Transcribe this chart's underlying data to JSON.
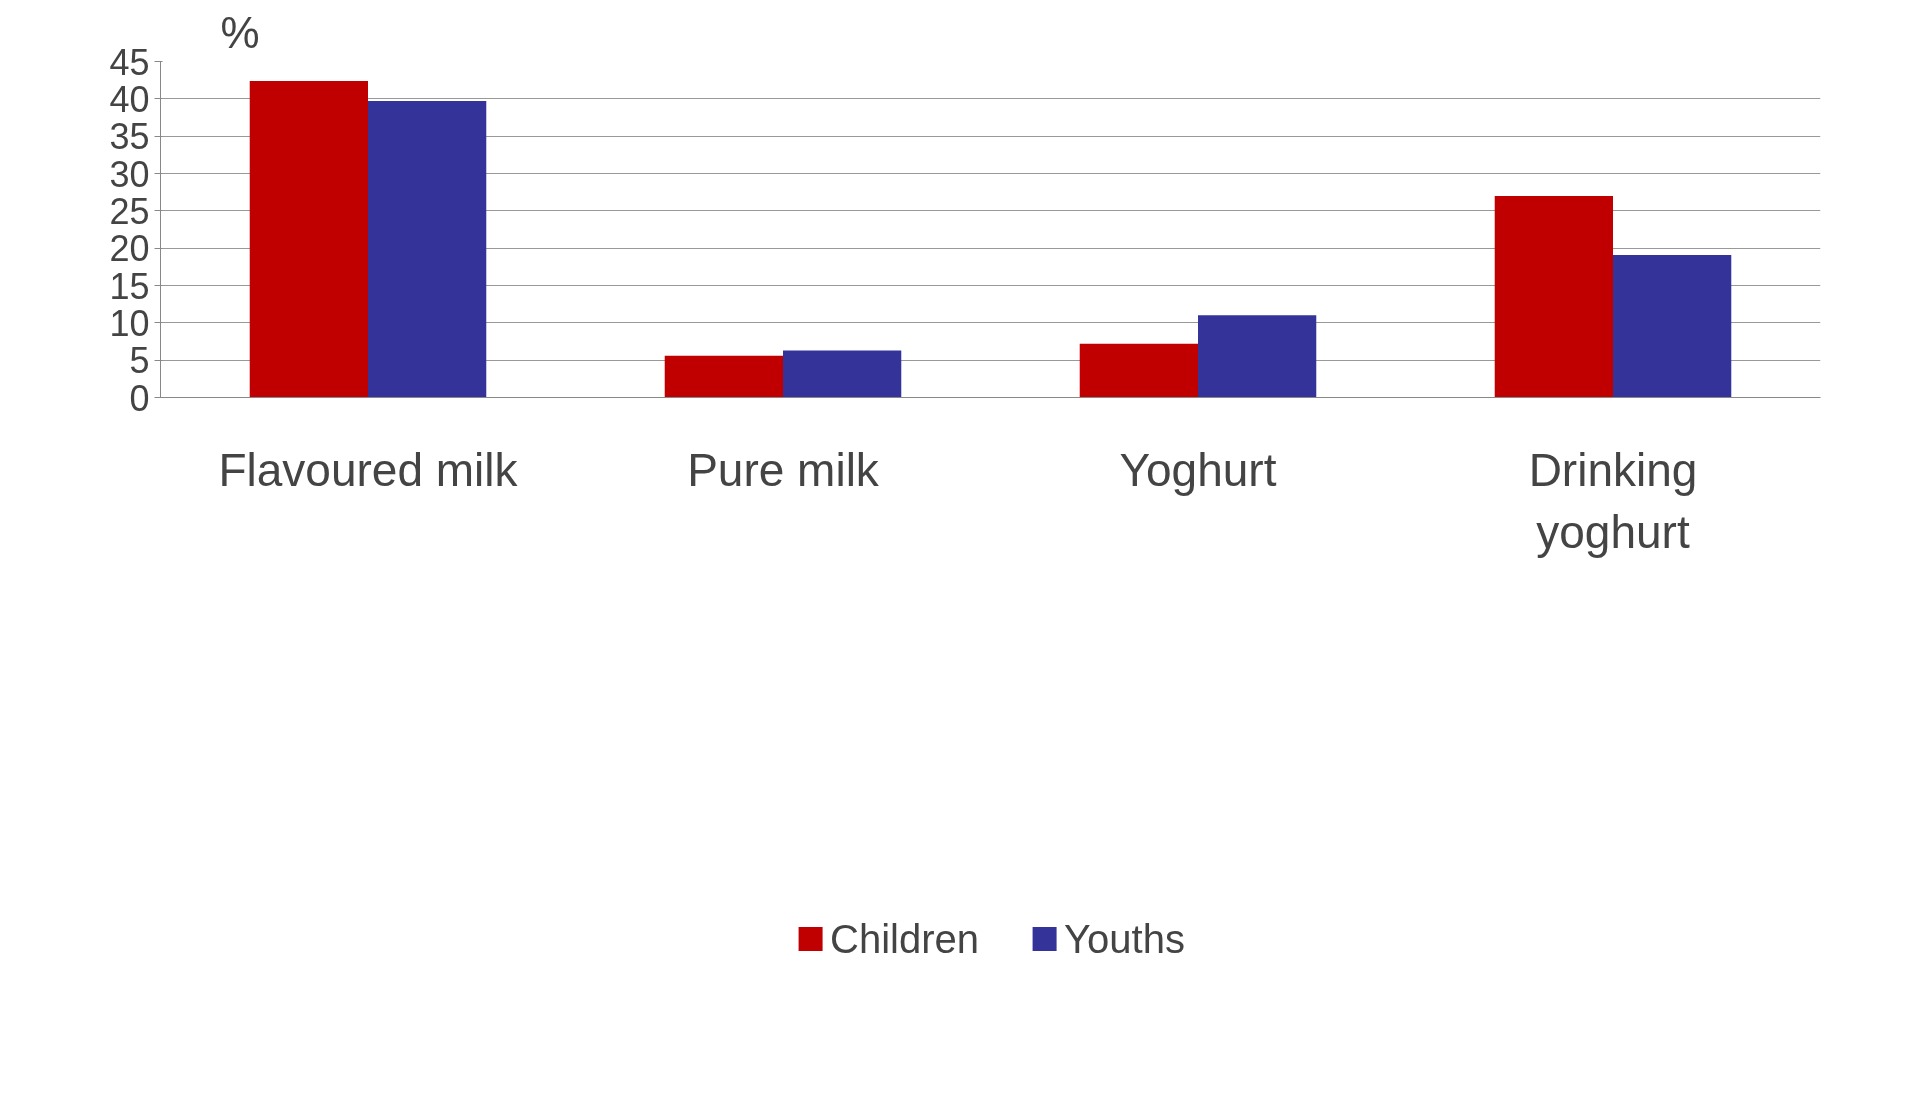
{
  "chart_data": {
    "type": "bar",
    "ylabel": "%",
    "categories": [
      "Flavoured milk",
      "Pure milk",
      "Yoghurt",
      "Drinking yoghurt"
    ],
    "series": [
      {
        "name": "Children",
        "color": "#c00000",
        "values": [
          42.4,
          5.6,
          7.2,
          27.0
        ]
      },
      {
        "name": "Youths",
        "color": "#333399",
        "values": [
          39.7,
          6.3,
          11.0,
          19.1
        ]
      }
    ],
    "ylim": [
      0,
      45
    ],
    "yticks": [
      0,
      5,
      10,
      15,
      20,
      25,
      30,
      35,
      40,
      45
    ],
    "grid": "y",
    "legend": "bottom"
  }
}
